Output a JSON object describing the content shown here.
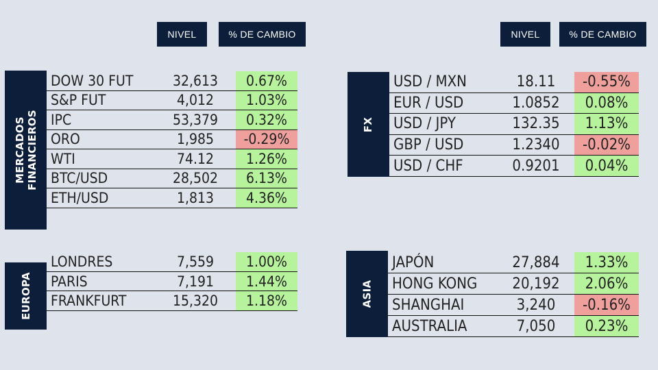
{
  "headers": {
    "left": {
      "nivel": "NIVEL",
      "cambio": "% DE CAMBIO"
    },
    "right": {
      "nivel": "NIVEL",
      "cambio": "% DE CAMBIO"
    }
  },
  "colors": {
    "navy": "#0d1e3a",
    "positive": "#b7f29c",
    "negative": "#f0a09c",
    "background": "#dfe3ec"
  },
  "sections": {
    "mercados": {
      "label_line1": "MERCADOS",
      "label_line2": "FINANCIEROS",
      "rows": [
        {
          "name": "DOW 30 FUT",
          "level": "32,613",
          "change": "0.67%",
          "direction": "up"
        },
        {
          "name": "S&P FUT",
          "level": "4,012",
          "change": "1.03%",
          "direction": "up"
        },
        {
          "name": "IPC",
          "level": "53,379",
          "change": "0.32%",
          "direction": "up"
        },
        {
          "name": "ORO",
          "level": "1,985",
          "change": "-0.29%",
          "direction": "down"
        },
        {
          "name": "WTI",
          "level": "74.12",
          "change": "1.26%",
          "direction": "up"
        },
        {
          "name": "BTC/USD",
          "level": "28,502",
          "change": "6.13%",
          "direction": "up"
        },
        {
          "name": "ETH/USD",
          "level": "1,813",
          "change": "4.36%",
          "direction": "up"
        }
      ]
    },
    "fx": {
      "label": "FX",
      "rows": [
        {
          "name": "USD / MXN",
          "level": "18.11",
          "change": "-0.55%",
          "direction": "down"
        },
        {
          "name": "EUR / USD",
          "level": "1.0852",
          "change": "0.08%",
          "direction": "up"
        },
        {
          "name": "USD / JPY",
          "level": "132.35",
          "change": "1.13%",
          "direction": "up"
        },
        {
          "name": "GBP / USD",
          "level": "1.2340",
          "change": "-0.02%",
          "direction": "down"
        },
        {
          "name": "USD / CHF",
          "level": "0.9201",
          "change": "0.04%",
          "direction": "up"
        }
      ]
    },
    "europa": {
      "label": "EUROPA",
      "rows": [
        {
          "name": "LONDRES",
          "level": "7,559",
          "change": "1.00%",
          "direction": "up"
        },
        {
          "name": "PARIS",
          "level": "7,191",
          "change": "1.44%",
          "direction": "up"
        },
        {
          "name": "FRANKFURT",
          "level": "15,320",
          "change": "1.18%",
          "direction": "up"
        }
      ]
    },
    "asia": {
      "label": "ASIA",
      "rows": [
        {
          "name": "JAPÓN",
          "level": "27,884",
          "change": "1.33%",
          "direction": "up"
        },
        {
          "name": "HONG KONG",
          "level": "20,192",
          "change": "2.06%",
          "direction": "up"
        },
        {
          "name": "SHANGHAI",
          "level": "3,240",
          "change": "-0.16%",
          "direction": "down"
        },
        {
          "name": "AUSTRALIA",
          "level": "7,050",
          "change": "0.23%",
          "direction": "up"
        }
      ]
    }
  }
}
